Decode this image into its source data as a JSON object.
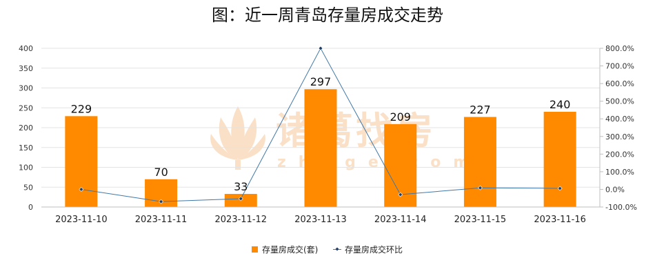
{
  "colors": {
    "bar": "#ff8a00",
    "line": "#3f77a8",
    "grid": "#e3e3e3",
    "axis": "#bfbfbf",
    "watermark": "#f8cfa8"
  },
  "chart_data": {
    "type": "bar",
    "title": "图：近一周青岛存量房成交走势",
    "categories": [
      "2023-11-10",
      "2023-11-11",
      "2023-11-12",
      "2023-11-13",
      "2023-11-14",
      "2023-11-15",
      "2023-11-16"
    ],
    "series": [
      {
        "name": "存量房成交(套)",
        "type": "bar",
        "axis": "left",
        "values": [
          229,
          70,
          33,
          297,
          209,
          227,
          240
        ]
      },
      {
        "name": "存量房成交环比",
        "type": "line",
        "axis": "right",
        "values": [
          0.0,
          -69.4,
          -52.9,
          800.0,
          -29.6,
          8.6,
          5.7
        ]
      }
    ],
    "y_left": {
      "range": [
        0,
        400
      ],
      "ticks": [
        "0",
        "50",
        "100",
        "150",
        "200",
        "250",
        "300",
        "350",
        "400"
      ]
    },
    "y_right": {
      "range": [
        -100,
        800
      ],
      "ticks": [
        "-100.0%",
        "0.0%",
        "100.0%",
        "200.0%",
        "300.0%",
        "400.0%",
        "500.0%",
        "600.0%",
        "700.0%",
        "800.0%"
      ]
    },
    "data_labels": [
      "229",
      "70",
      "33",
      "297",
      "209",
      "227",
      "240"
    ],
    "grid": true,
    "legend": "bottom"
  },
  "watermark": {
    "brand": "诸葛找房",
    "domain": "zhuge.com"
  }
}
